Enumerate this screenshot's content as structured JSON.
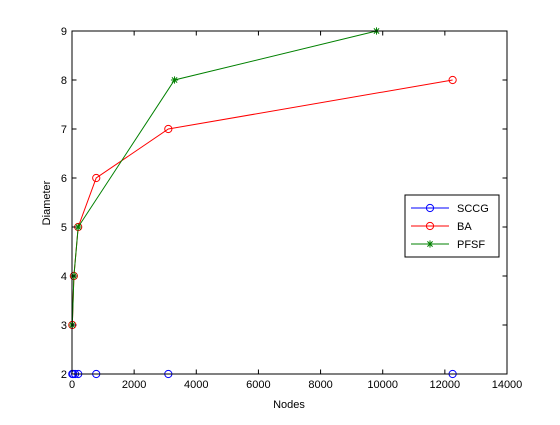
{
  "chart_data": {
    "type": "line",
    "xlabel": "Nodes",
    "ylabel": "Diameter",
    "xlim": [
      0,
      14000
    ],
    "ylim": [
      2,
      9
    ],
    "xticks": [
      0,
      2000,
      4000,
      6000,
      8000,
      10000,
      12000,
      14000
    ],
    "yticks": [
      2,
      3,
      4,
      5,
      6,
      7,
      8,
      9
    ],
    "grid": false,
    "legend_position": "right",
    "series": [
      {
        "name": "SCCG",
        "color": "#0000ff",
        "marker": "circle",
        "line": false,
        "x": [
          10,
          40,
          100,
          200,
          780,
          3100,
          12250
        ],
        "y": [
          2,
          2,
          2,
          2,
          2,
          2,
          2
        ]
      },
      {
        "name": "BA",
        "color": "#ff0000",
        "marker": "circle",
        "line": true,
        "x": [
          10,
          60,
          200,
          780,
          3100,
          12250
        ],
        "y": [
          3,
          4,
          5,
          6,
          7,
          8
        ]
      },
      {
        "name": "PFSF",
        "color": "#008000",
        "marker": "star",
        "line": true,
        "x": [
          10,
          60,
          200,
          3300,
          9800
        ],
        "y": [
          3,
          4,
          5,
          8,
          9
        ]
      }
    ]
  }
}
